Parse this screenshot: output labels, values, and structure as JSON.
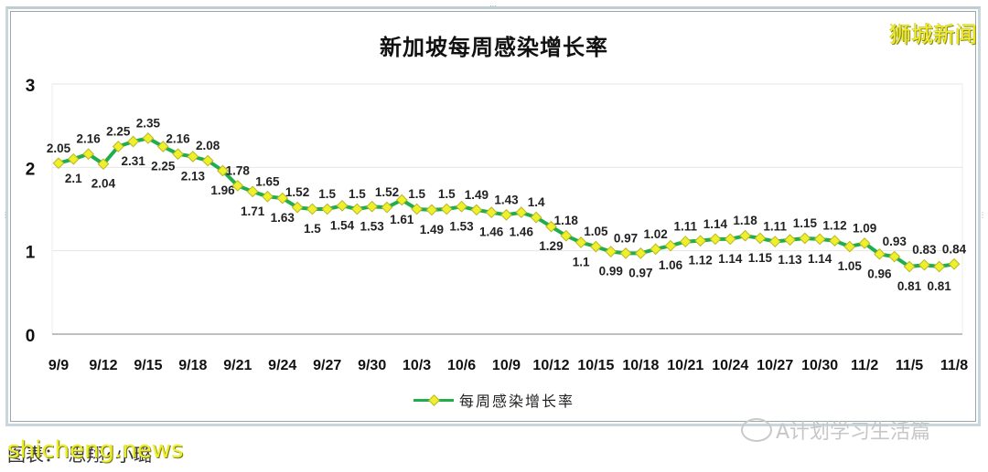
{
  "title": "新加坡每周感染增长率",
  "brand": "狮城新闻",
  "legend": {
    "label": "每周感染增长率"
  },
  "caption": "图表：   思翔•小璐",
  "watermarks": {
    "site": "shicheng.news",
    "wechat": "A计划学习生活篇"
  },
  "colors": {
    "line": "#1fae4b",
    "marker": "#eef02a",
    "marker_edge": "#b9b52a",
    "grid": "#e6e6e6",
    "axis": "#bfbfbf"
  },
  "chart_data": {
    "type": "line",
    "title": "新加坡每周感染增长率",
    "xlabel": "",
    "ylabel": "",
    "ylim": [
      0,
      3
    ],
    "yticks": [
      0,
      1,
      2,
      3
    ],
    "grid": true,
    "legend_position": "bottom",
    "x_tick_labels": [
      "9/9",
      "9/12",
      "9/15",
      "9/18",
      "9/21",
      "9/24",
      "9/27",
      "9/30",
      "10/3",
      "10/6",
      "10/9",
      "10/12",
      "10/15",
      "10/18",
      "10/21",
      "10/24",
      "10/27",
      "10/30",
      "11/2",
      "11/5",
      "11/8"
    ],
    "x": [
      "9/9",
      "9/10",
      "9/11",
      "9/12",
      "9/13",
      "9/14",
      "9/15",
      "9/16",
      "9/17",
      "9/18",
      "9/19",
      "9/20",
      "9/21",
      "9/22",
      "9/23",
      "9/24",
      "9/25",
      "9/26",
      "9/27",
      "9/28",
      "9/29",
      "9/30",
      "10/1",
      "10/2",
      "10/3",
      "10/4",
      "10/5",
      "10/6",
      "10/7",
      "10/8",
      "10/9",
      "10/10",
      "10/11",
      "10/12",
      "10/13",
      "10/14",
      "10/15",
      "10/16",
      "10/17",
      "10/18",
      "10/19",
      "10/20",
      "10/21",
      "10/22",
      "10/23",
      "10/24",
      "10/25",
      "10/26",
      "10/27",
      "10/28",
      "10/29",
      "10/30",
      "10/31",
      "11/1",
      "11/2",
      "11/3",
      "11/4",
      "11/5",
      "11/6",
      "11/7",
      "11/8"
    ],
    "series": [
      {
        "name": "每周感染增长率",
        "values": [
          2.05,
          2.1,
          2.16,
          2.04,
          2.25,
          2.31,
          2.35,
          2.25,
          2.16,
          2.13,
          2.08,
          1.96,
          1.78,
          1.71,
          1.65,
          1.63,
          1.52,
          1.5,
          1.5,
          1.54,
          1.5,
          1.53,
          1.52,
          1.61,
          1.5,
          1.49,
          1.5,
          1.53,
          1.49,
          1.46,
          1.43,
          1.46,
          1.4,
          1.29,
          1.18,
          1.1,
          1.05,
          0.99,
          0.97,
          0.97,
          1.02,
          1.06,
          1.11,
          1.12,
          1.14,
          1.14,
          1.18,
          1.15,
          1.11,
          1.13,
          1.15,
          1.14,
          1.12,
          1.05,
          1.09,
          0.96,
          0.93,
          0.81,
          0.83,
          0.81,
          0.84
        ]
      }
    ]
  }
}
